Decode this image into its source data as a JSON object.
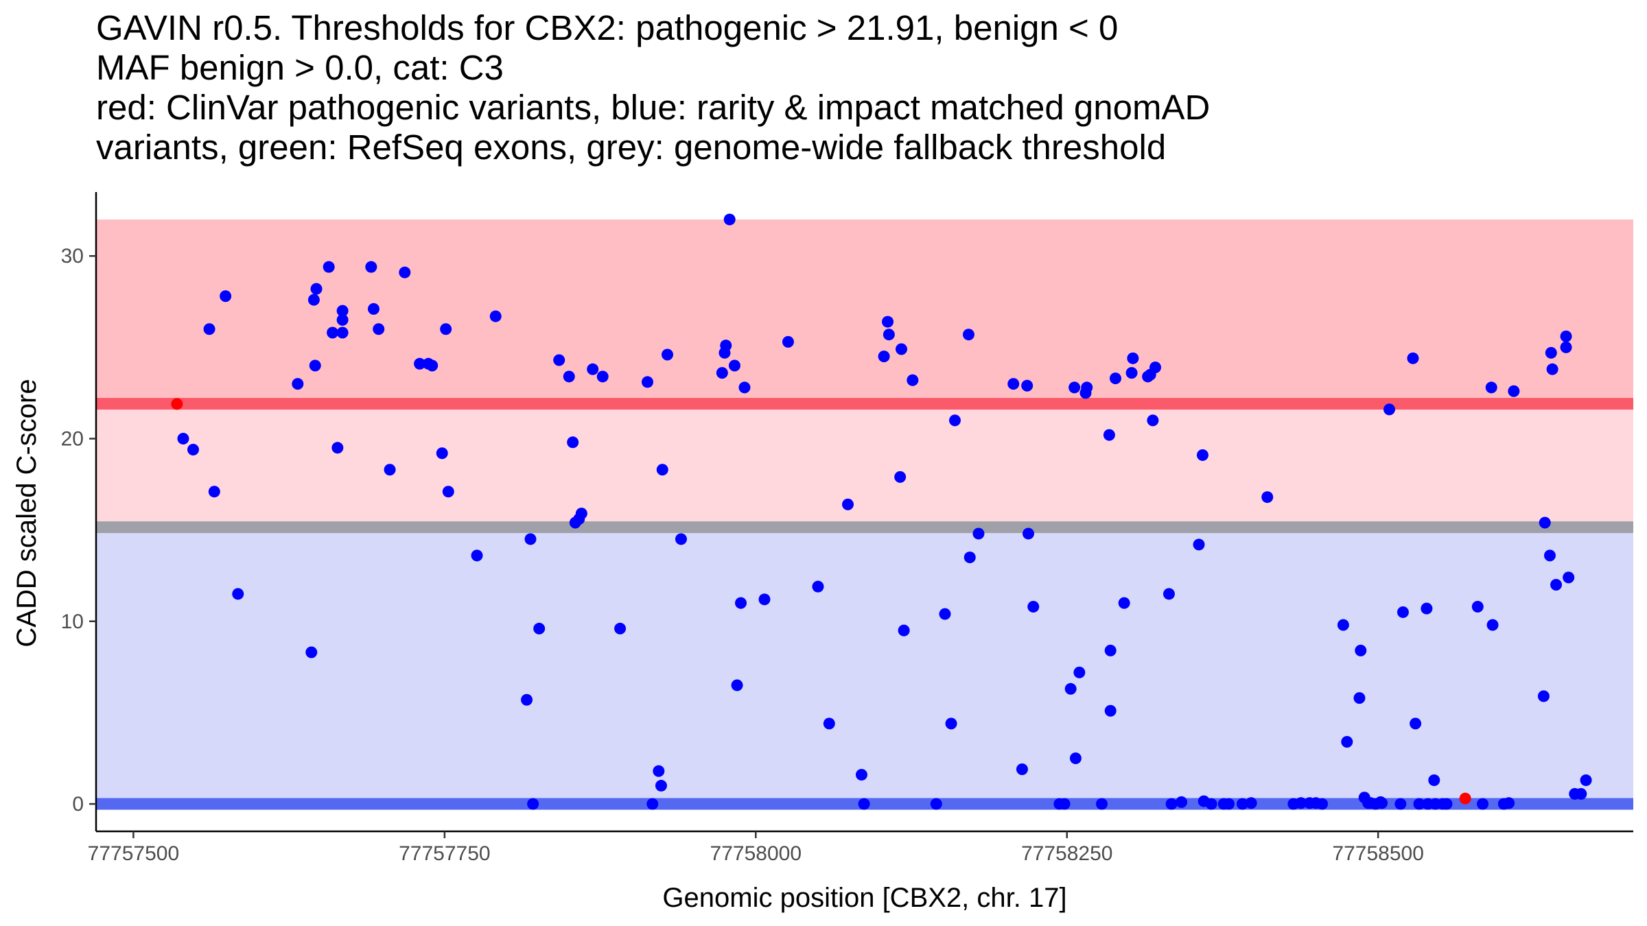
{
  "chart_data": {
    "type": "scatter",
    "title_lines": [
      "GAVIN r0.5. Thresholds for CBX2: pathogenic > 21.91, benign < 0",
      "MAF benign > 0.0, cat: C3",
      "red: ClinVar pathogenic variants, blue: rarity & impact matched gnomAD",
      "variants, green: RefSeq exons, grey: genome-wide fallback threshold"
    ],
    "xlabel": "Genomic position [CBX2, chr. 17]",
    "ylabel": "CADD scaled C-score",
    "xlim": [
      77757470,
      77758705
    ],
    "ylim": [
      -1.5,
      33.5
    ],
    "x_ticks": [
      77757500,
      77757750,
      77758000,
      77758250,
      77758500
    ],
    "x_tick_labels": [
      "77757500",
      "77757750",
      "77758000",
      "77758250",
      "77758500"
    ],
    "y_ticks": [
      0,
      10,
      20,
      30
    ],
    "y_tick_labels": [
      "0",
      "10",
      "20",
      "30"
    ],
    "bands": [
      {
        "name": "pathogenic-region",
        "y_from": 21.91,
        "y_to": 32,
        "color": "#FFBEC4"
      },
      {
        "name": "intermediate-region",
        "y_from": 15,
        "y_to": 21.91,
        "color": "#FFD8DE"
      },
      {
        "name": "benign-region",
        "y_from": 0,
        "y_to": 15,
        "color": "#D7D9FB"
      }
    ],
    "threshold_lines": [
      {
        "name": "pathogenic-threshold",
        "y": 21.91,
        "color": "#FA5A6A"
      },
      {
        "name": "fallback-threshold",
        "y": 15.15,
        "color": "#A0A0A8"
      },
      {
        "name": "benign-threshold",
        "y": 0,
        "color": "#5468F2"
      }
    ],
    "series": [
      {
        "name": "ClinVar pathogenic variants",
        "color": "#FF0000",
        "points": [
          [
            77757535,
            21.9
          ],
          [
            77758570,
            0.3
          ]
        ]
      },
      {
        "name": "rarity & impact matched gnomAD variants",
        "color": "#0000FF",
        "points": [
          [
            77757540,
            20.0
          ],
          [
            77757548,
            19.4
          ],
          [
            77757561,
            26.0
          ],
          [
            77757565,
            17.1
          ],
          [
            77757574,
            27.8
          ],
          [
            77757584,
            11.5
          ],
          [
            77757632,
            23.0
          ],
          [
            77757643,
            8.3
          ],
          [
            77757645,
            27.6
          ],
          [
            77757646,
            24.0
          ],
          [
            77757647,
            28.2
          ],
          [
            77757657,
            29.4
          ],
          [
            77757660,
            25.8
          ],
          [
            77757664,
            19.5
          ],
          [
            77757668,
            25.8
          ],
          [
            77757668,
            26.5
          ],
          [
            77757668,
            27.0
          ],
          [
            77757691,
            29.4
          ],
          [
            77757693,
            27.1
          ],
          [
            77757697,
            26.0
          ],
          [
            77757706,
            18.3
          ],
          [
            77757718,
            29.1
          ],
          [
            77757730,
            24.1
          ],
          [
            77757737,
            24.1
          ],
          [
            77757740,
            24.0
          ],
          [
            77757748,
            19.2
          ],
          [
            77757751,
            26.0
          ],
          [
            77757753,
            17.1
          ],
          [
            77757776,
            13.6
          ],
          [
            77757791,
            26.7
          ],
          [
            77757816,
            5.7
          ],
          [
            77757819,
            14.5
          ],
          [
            77757821,
            0.0
          ],
          [
            77757826,
            9.6
          ],
          [
            77757842,
            24.3
          ],
          [
            77757850,
            23.4
          ],
          [
            77757853,
            19.8
          ],
          [
            77757855,
            15.4
          ],
          [
            77757858,
            15.6
          ],
          [
            77757860,
            15.9
          ],
          [
            77757869,
            23.8
          ],
          [
            77757877,
            23.4
          ],
          [
            77757891,
            9.6
          ],
          [
            77757913,
            23.1
          ],
          [
            77757917,
            0.0
          ],
          [
            77757922,
            1.8
          ],
          [
            77757924,
            1.0
          ],
          [
            77757925,
            18.3
          ],
          [
            77757929,
            24.6
          ],
          [
            77757940,
            14.5
          ],
          [
            77757973,
            23.6
          ],
          [
            77757975,
            24.7
          ],
          [
            77757976,
            25.1
          ],
          [
            77757979,
            32.0
          ],
          [
            77757983,
            24.0
          ],
          [
            77757985,
            6.5
          ],
          [
            77757988,
            11.0
          ],
          [
            77757991,
            22.8
          ],
          [
            77758007,
            11.2
          ],
          [
            77758026,
            25.3
          ],
          [
            77758050,
            11.9
          ],
          [
            77758059,
            4.4
          ],
          [
            77758074,
            16.4
          ],
          [
            77758085,
            1.6
          ],
          [
            77758087,
            0.0
          ],
          [
            77758103,
            24.5
          ],
          [
            77758106,
            26.4
          ],
          [
            77758107,
            25.7
          ],
          [
            77758116,
            17.9
          ],
          [
            77758117,
            24.9
          ],
          [
            77758119,
            9.5
          ],
          [
            77758126,
            23.2
          ],
          [
            77758145,
            0.0
          ],
          [
            77758152,
            10.4
          ],
          [
            77758157,
            4.4
          ],
          [
            77758160,
            21.0
          ],
          [
            77758171,
            25.7
          ],
          [
            77758172,
            13.5
          ],
          [
            77758179,
            14.8
          ],
          [
            77758207,
            23.0
          ],
          [
            77758214,
            1.9
          ],
          [
            77758218,
            22.9
          ],
          [
            77758219,
            14.8
          ],
          [
            77758223,
            10.8
          ],
          [
            77758244,
            0.0
          ],
          [
            77758248,
            0.0
          ],
          [
            77758253,
            6.3
          ],
          [
            77758256,
            22.8
          ],
          [
            77758257,
            2.5
          ],
          [
            77758260,
            7.2
          ],
          [
            77758265,
            22.5
          ],
          [
            77758266,
            22.8
          ],
          [
            77758278,
            0.0
          ],
          [
            77758284,
            20.2
          ],
          [
            77758285,
            8.4
          ],
          [
            77758285,
            5.1
          ],
          [
            77758289,
            23.3
          ],
          [
            77758296,
            11.0
          ],
          [
            77758302,
            23.6
          ],
          [
            77758303,
            24.4
          ],
          [
            77758315,
            23.4
          ],
          [
            77758317,
            23.5
          ],
          [
            77758319,
            21.0
          ],
          [
            77758321,
            23.9
          ],
          [
            77758332,
            11.5
          ],
          [
            77758334,
            0.0
          ],
          [
            77758342,
            0.1
          ],
          [
            77758356,
            14.2
          ],
          [
            77758359,
            19.1
          ],
          [
            77758360,
            0.15
          ],
          [
            77758366,
            0.0
          ],
          [
            77758376,
            0.0
          ],
          [
            77758380,
            0.0
          ],
          [
            77758391,
            0.0
          ],
          [
            77758398,
            0.05
          ],
          [
            77758411,
            16.8
          ],
          [
            77758432,
            0.0
          ],
          [
            77758438,
            0.05
          ],
          [
            77758445,
            0.05
          ],
          [
            77758450,
            0.05
          ],
          [
            77758455,
            0.0
          ],
          [
            77758472,
            9.8
          ],
          [
            77758475,
            3.4
          ],
          [
            77758485,
            5.8
          ],
          [
            77758486,
            8.4
          ],
          [
            77758489,
            0.35
          ],
          [
            77758492,
            0.05
          ],
          [
            77758494,
            0.05
          ],
          [
            77758498,
            0.0
          ],
          [
            77758502,
            0.1
          ],
          [
            77758503,
            0.05
          ],
          [
            77758509,
            21.6
          ],
          [
            77758518,
            0.0
          ],
          [
            77758520,
            10.5
          ],
          [
            77758528,
            24.4
          ],
          [
            77758530,
            4.4
          ],
          [
            77758533,
            0.0
          ],
          [
            77758539,
            10.7
          ],
          [
            77758540,
            0.0
          ],
          [
            77758545,
            1.3
          ],
          [
            77758546,
            0.0
          ],
          [
            77758552,
            0.0
          ],
          [
            77758555,
            0.0
          ],
          [
            77758580,
            10.8
          ],
          [
            77758584,
            0.0
          ],
          [
            77758591,
            22.8
          ],
          [
            77758592,
            9.8
          ],
          [
            77758601,
            0.0
          ],
          [
            77758605,
            0.05
          ],
          [
            77758609,
            22.6
          ],
          [
            77758633,
            5.9
          ],
          [
            77758634,
            15.4
          ],
          [
            77758638,
            13.6
          ],
          [
            77758639,
            24.7
          ],
          [
            77758640,
            23.8
          ],
          [
            77758643,
            12.0
          ],
          [
            77758651,
            25.0
          ],
          [
            77758651,
            25.6
          ],
          [
            77758653,
            12.4
          ],
          [
            77758658,
            0.55
          ],
          [
            77758663,
            0.55
          ],
          [
            77758667,
            1.3
          ]
        ]
      }
    ]
  }
}
